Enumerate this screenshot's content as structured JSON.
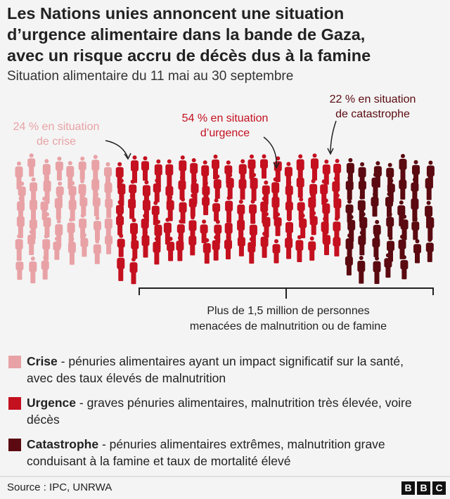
{
  "header": {
    "title": [
      "Les Nations unies annoncent une situation",
      "d’urgence alimentaire dans la bande de Gaza,",
      "avec un risque accru de décès dus à la famine"
    ],
    "subtitle": "Situation alimentaire du 11 mai au 30 septembre"
  },
  "groups": [
    {
      "label": [
        "24 % en situation",
        "de crise"
      ],
      "share": 24,
      "color": "#e8a2a6"
    },
    {
      "label": [
        "54 % en situation",
        "d’urgence"
      ],
      "share": 54,
      "color": "#c4101f"
    },
    {
      "label": [
        "22 % en situation",
        "de catastrophe"
      ],
      "share": 22,
      "color": "#5a0a10"
    }
  ],
  "bracket_label": [
    "Plus de 1,5 million de personnes",
    "menacées de malnutrition ou de famine"
  ],
  "legend": [
    {
      "name": "Crise",
      "description": "- pénuries alimentaires ayant un impact significatif sur la santé, avec des taux élevés de malnutrition"
    },
    {
      "name": "Urgence",
      "description": "- graves pénuries alimentaires, malnutrition très élevée, voire décès"
    },
    {
      "name": "Catastrophe",
      "description": "- pénuries alimentaires extrêmes, malnutrition grave conduisant à la famine et taux de mortalité élevé"
    }
  ],
  "source": "Source : IPC, UNRWA",
  "logo": [
    "B",
    "B",
    "C"
  ]
}
